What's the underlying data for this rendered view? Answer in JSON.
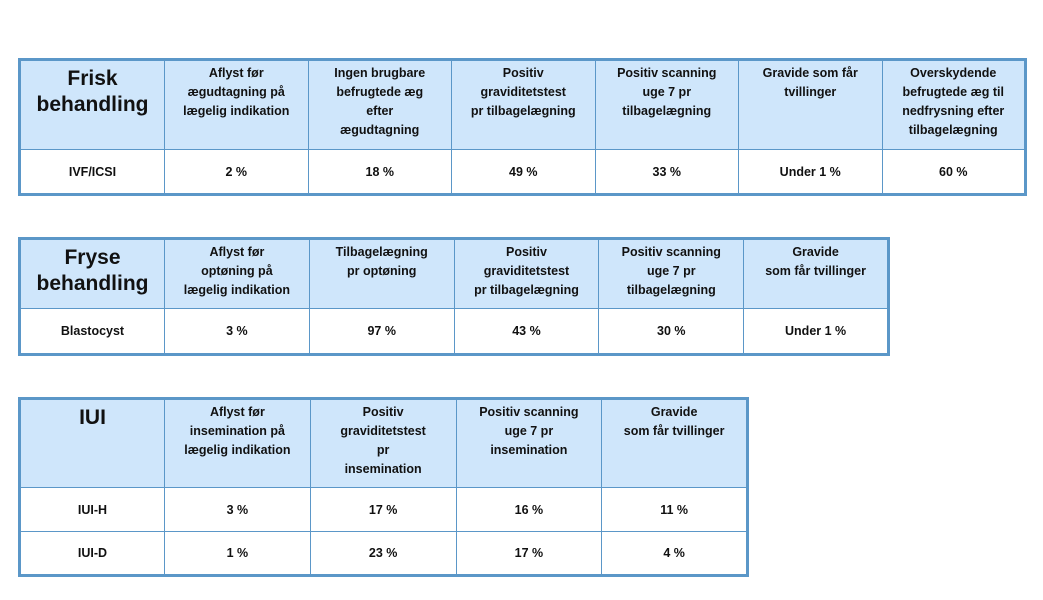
{
  "tables": [
    {
      "title": "Frisk\nbehandling",
      "headers": [
        "Aflyst før\nægudtagning på\nlægelig indikation",
        "Ingen brugbare\nbefrugtede æg\nefter\nægudtagning",
        "Positiv\ngraviditetstest\npr tilbagelægning",
        "Positiv scanning\nuge 7 pr\ntilbagelægning",
        "Gravide som får\ntvillinger",
        "Overskydende\nbefrugtede æg til\nnedfrysning efter\ntilbagelægning"
      ],
      "rows": [
        {
          "label": "IVF/ICSI",
          "values": [
            "2 %",
            "18 %",
            "49 %",
            "33 %",
            "Under 1 %",
            "60 %"
          ]
        }
      ]
    },
    {
      "title": "Fryse\nbehandling",
      "headers": [
        "Aflyst før\noptøning på\nlægelig indikation",
        "Tilbagelægning\npr optøning",
        "Positiv\ngraviditetstest\npr tilbagelægning",
        "Positiv scanning\nuge 7 pr\ntilbagelægning",
        "Gravide\nsom får tvillinger"
      ],
      "rows": [
        {
          "label": "Blastocyst",
          "values": [
            "3 %",
            "97 %",
            "43 %",
            "30 %",
            "Under 1 %"
          ]
        }
      ]
    },
    {
      "title": "IUI",
      "headers": [
        "Aflyst før\ninsemination på\nlægelig indikation",
        "Positiv\ngraviditetstest\npr\ninsemination",
        "Positiv scanning\nuge 7 pr\ninsemination",
        "Gravide\nsom får tvillinger"
      ],
      "rows": [
        {
          "label": "IUI-H",
          "values": [
            "3 %",
            "17 %",
            "16 %",
            "11 %"
          ]
        },
        {
          "label": "IUI-D",
          "values": [
            "1 %",
            "23 %",
            "17 %",
            "4 %"
          ]
        }
      ]
    }
  ],
  "colors": {
    "header_bg": "#cfe6fb",
    "border": "#5b97c8"
  }
}
